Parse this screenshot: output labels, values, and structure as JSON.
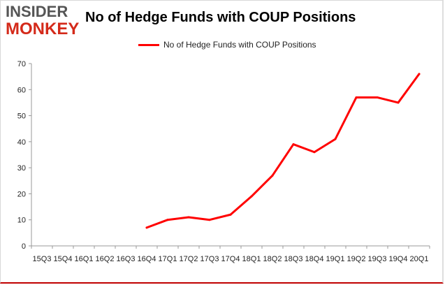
{
  "logo": {
    "line1": "INSIDER",
    "line2": "MONKEY"
  },
  "chart_data": {
    "type": "line",
    "title": "No of Hedge Funds with COUP Positions",
    "xlabel": "",
    "ylabel": "",
    "ylim": [
      0,
      70
    ],
    "yticks": [
      0,
      10,
      20,
      30,
      40,
      50,
      60,
      70
    ],
    "grid": false,
    "legend_position": "top-center",
    "categories": [
      "15Q3",
      "15Q4",
      "16Q1",
      "16Q2",
      "16Q3",
      "16Q4",
      "17Q1",
      "17Q2",
      "17Q3",
      "17Q4",
      "18Q1",
      "18Q2",
      "18Q3",
      "18Q4",
      "19Q1",
      "19Q2",
      "19Q3",
      "19Q4",
      "20Q1"
    ],
    "series": [
      {
        "name": "No of Hedge Funds with COUP Positions",
        "color": "#ff0000",
        "values": [
          null,
          null,
          null,
          null,
          null,
          7,
          10,
          11,
          10,
          12,
          19,
          27,
          39,
          36,
          41,
          57,
          57,
          55,
          66
        ]
      }
    ]
  }
}
